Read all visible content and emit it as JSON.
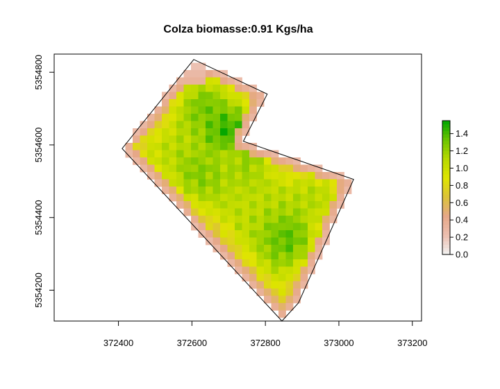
{
  "chart_data": {
    "type": "heatmap",
    "title": "Colza biomasse:0.91 Kgs/ha",
    "xlabel": "",
    "ylabel": "",
    "xlim": [
      372225,
      373225
    ],
    "ylim": [
      5354115,
      5354850
    ],
    "x_ticks": [
      372400,
      372600,
      372800,
      373000,
      373200
    ],
    "x_tick_labels": [
      "372400",
      "372600",
      "372800",
      "373000",
      "373200"
    ],
    "y_ticks": [
      5354200,
      5354400,
      5354600,
      5354800
    ],
    "y_tick_labels": [
      "5354200",
      "5354400",
      "5354600",
      "5354800"
    ],
    "grid": false,
    "field_boundary": [
      [
        372605,
        5354835
      ],
      [
        372410,
        5354590
      ],
      [
        372845,
        5354115
      ],
      [
        372890,
        5354165
      ],
      [
        373040,
        5354505
      ],
      [
        372740,
        5354610
      ],
      [
        372805,
        5354740
      ]
    ],
    "hotspots": [
      {
        "x": 372700,
        "y": 5354640,
        "value": 1.45
      },
      {
        "x": 372640,
        "y": 5354700,
        "value": 1.3
      },
      {
        "x": 372620,
        "y": 5354520,
        "value": 1.25
      },
      {
        "x": 372750,
        "y": 5354560,
        "value": 1.2
      },
      {
        "x": 372860,
        "y": 5354340,
        "value": 1.35
      },
      {
        "x": 372930,
        "y": 5354450,
        "value": 1.1
      },
      {
        "x": 372540,
        "y": 5354560,
        "value": 1.05
      },
      {
        "x": 372820,
        "y": 5354460,
        "value": 1.0
      },
      {
        "x": 372780,
        "y": 5354380,
        "value": 0.9
      }
    ],
    "legend": {
      "position": "right",
      "range": [
        0,
        1.55
      ],
      "ticks": [
        0.0,
        0.2,
        0.4,
        0.6,
        0.8,
        1.0,
        1.2,
        1.4
      ],
      "tick_labels": [
        "0.0",
        "0.2",
        "0.4",
        "0.6",
        "0.8",
        "1.0",
        "1.2",
        "1.4"
      ],
      "colors": [
        "#f2f2f2",
        "#ecbfb0",
        "#e6a889",
        "#dcc23a",
        "#dfe400",
        "#b8d900",
        "#6cc400",
        "#00a600"
      ]
    }
  }
}
